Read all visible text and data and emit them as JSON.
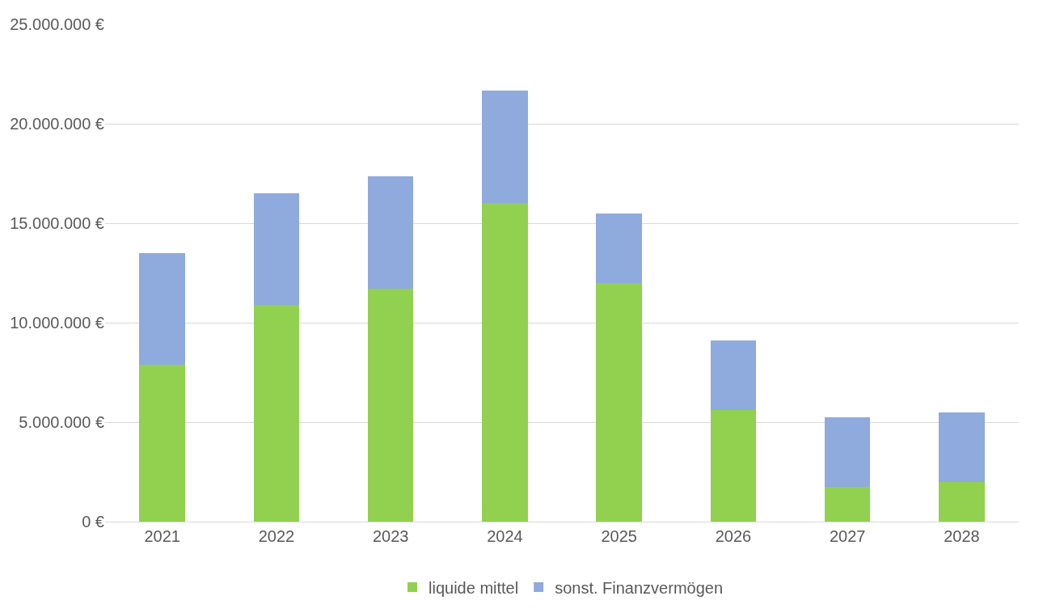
{
  "chart_data": {
    "type": "bar",
    "stacked": true,
    "categories": [
      "2021",
      "2022",
      "2023",
      "2024",
      "2025",
      "2026",
      "2027",
      "2028"
    ],
    "series": [
      {
        "name": "liquide mittel",
        "color": "#92d050",
        "values": [
          7900000,
          10900000,
          11700000,
          16000000,
          12000000,
          5600000,
          1750000,
          2000000
        ]
      },
      {
        "name": "sonst. Finanzvermögen",
        "color": "#8faadc",
        "values": [
          5600000,
          5600000,
          5650000,
          5650000,
          3500000,
          3500000,
          3500000,
          3500000
        ]
      }
    ],
    "ylim": [
      0,
      25000000
    ],
    "yticks": [
      {
        "value": 0,
        "label": "0 €"
      },
      {
        "value": 5000000,
        "label": "5.000.000 €"
      },
      {
        "value": 10000000,
        "label": "10.000.000 €"
      },
      {
        "value": 15000000,
        "label": "15.000.000 €"
      },
      {
        "value": 20000000,
        "label": "20.000.000 €"
      },
      {
        "value": 25000000,
        "label": "25.000.000 €"
      }
    ],
    "grid": "y",
    "legend": "bottom"
  }
}
